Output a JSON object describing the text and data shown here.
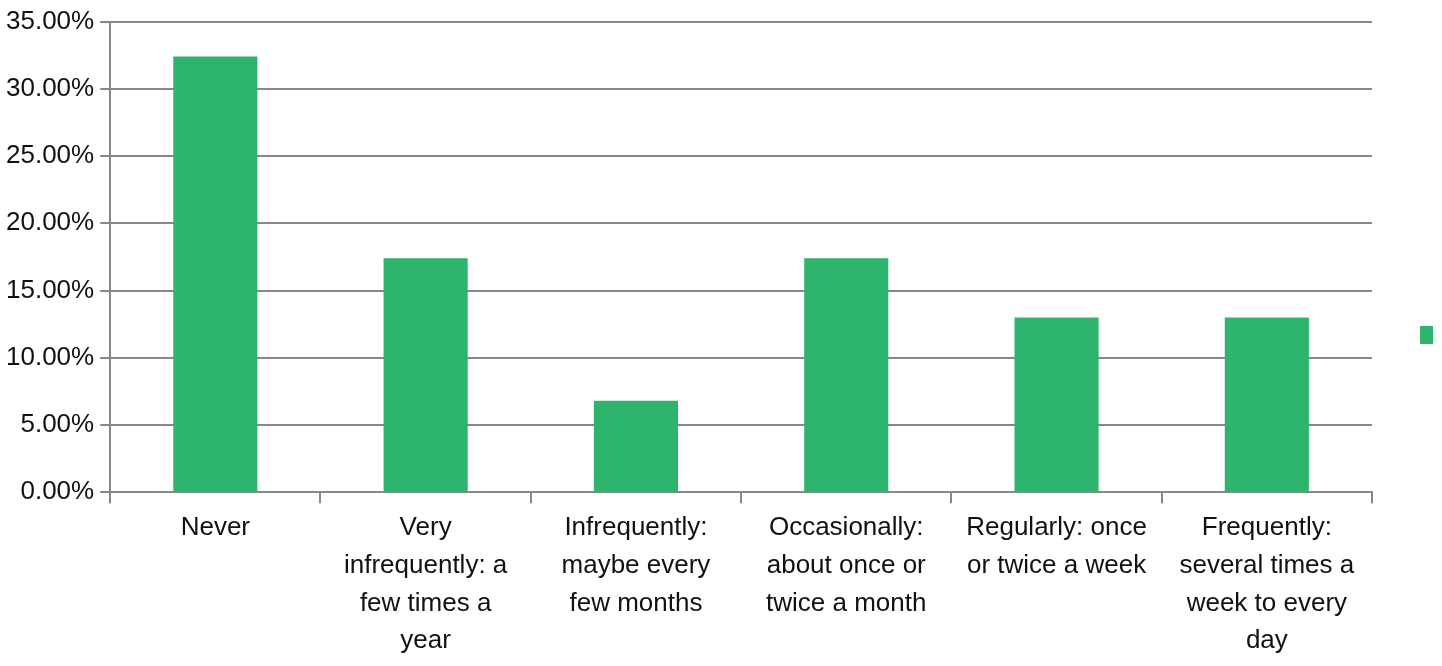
{
  "chart_data": {
    "type": "bar",
    "categories": [
      "Never",
      "Very infrequently: a few times a year",
      "Infrequently: maybe every few months",
      "Occasionally: about once or twice a month",
      "Regularly: once or twice a week",
      "Frequently: several times a week to every day"
    ],
    "series": [
      {
        "color": "#2db56d",
        "values": [
          32.4,
          17.4,
          6.8,
          17.4,
          13.0,
          13.0
        ]
      }
    ],
    "ylim": [
      0,
      35
    ],
    "yticks": [
      {
        "value": 0,
        "label": "0.00%"
      },
      {
        "value": 5,
        "label": "5.00%"
      },
      {
        "value": 10,
        "label": "10.00%"
      },
      {
        "value": 15,
        "label": "15.00%"
      },
      {
        "value": 20,
        "label": "20.00%"
      },
      {
        "value": 25,
        "label": "25.00%"
      },
      {
        "value": 30,
        "label": "30.00%"
      },
      {
        "value": 35,
        "label": "35.00%"
      }
    ],
    "grid": "y"
  }
}
